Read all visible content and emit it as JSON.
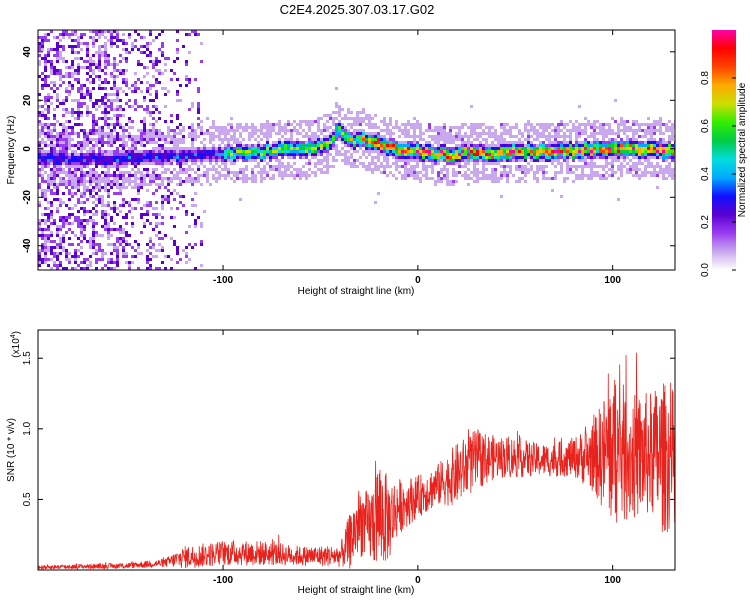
{
  "figure_title": "C2E4.2025.307.03.17.G02",
  "chart_data": [
    {
      "type": "heatmap",
      "title": "C2E4.2025.307.03.17.G02",
      "xlabel": "Height of straight line (km)",
      "ylabel": "Frequency (Hz)",
      "xlim": [
        -195,
        132
      ],
      "ylim": [
        -50,
        49
      ],
      "xticks": [
        -100,
        0,
        100
      ],
      "xtick_labels": [
        "-100",
        "0",
        "100"
      ],
      "yticks": [
        -40,
        -20,
        0,
        20,
        40
      ],
      "ytick_labels": [
        "-40",
        "-20",
        "0",
        "20",
        "40"
      ],
      "ridge": {
        "x": [
          -195,
          -150,
          -120,
          -100,
          -80,
          -60,
          -45,
          -40,
          -35,
          -30,
          -20,
          -10,
          0,
          10,
          20,
          30,
          40,
          50,
          60,
          70,
          80,
          90,
          100,
          110,
          120,
          132
        ],
        "frequency_hz": [
          -4,
          -4,
          -3,
          -2,
          -1,
          0,
          2,
          8,
          3,
          4,
          2,
          0,
          -1,
          -2,
          -2,
          -2,
          -2,
          -1,
          -1,
          -1,
          -1,
          0,
          0,
          0,
          0,
          -1
        ]
      },
      "noise_region_x": [
        -195,
        -110
      ],
      "colorbar": {
        "label": "Normalized spectral amplitude",
        "range": [
          0,
          1
        ],
        "ticks": [
          0,
          0.2,
          0.4,
          0.6,
          0.8
        ],
        "tick_labels": [
          "0.0",
          "0.2",
          "0.4",
          "0.6",
          "0.8"
        ],
        "colors": [
          "#ffffff",
          "#c9a8ee",
          "#9a3cf0",
          "#5a00d0",
          "#1010ff",
          "#00aaff",
          "#00dddd",
          "#00cc44",
          "#33ee00",
          "#ccdd00",
          "#ffaa00",
          "#ff4400",
          "#ff0000",
          "#ff00aa"
        ]
      }
    },
    {
      "type": "line",
      "xlabel": "Height of straight line (km)",
      "ylabel": "SNR (10 * v/v)",
      "y_scale_label": "(x10",
      "y_scale_exponent": "4",
      "y_scale_suffix": ")",
      "xlim": [
        -195,
        132
      ],
      "ylim": [
        0,
        1.7
      ],
      "xticks": [
        -100,
        0,
        100
      ],
      "xtick_labels": [
        "-100",
        "0",
        "100"
      ],
      "yticks": [
        0.5,
        1.0,
        1.5
      ],
      "ytick_labels": [
        "0.5",
        "1.0",
        "1.5"
      ],
      "color": "#e8231d",
      "envelope": {
        "x": [
          -195,
          -150,
          -130,
          -120,
          -100,
          -80,
          -60,
          -40,
          -35,
          -30,
          -25,
          -20,
          -15,
          -10,
          0,
          10,
          20,
          30,
          40,
          50,
          60,
          70,
          80,
          90,
          95,
          100,
          110,
          120,
          125,
          132
        ],
        "mean": [
          0.02,
          0.03,
          0.05,
          0.09,
          0.12,
          0.12,
          0.1,
          0.1,
          0.2,
          0.35,
          0.3,
          0.4,
          0.35,
          0.45,
          0.52,
          0.6,
          0.68,
          0.78,
          0.8,
          0.8,
          0.78,
          0.78,
          0.8,
          0.8,
          0.82,
          0.85,
          0.8,
          0.82,
          0.8,
          0.78
        ],
        "amp": [
          0.015,
          0.02,
          0.03,
          0.08,
          0.09,
          0.09,
          0.07,
          0.08,
          0.2,
          0.25,
          0.25,
          0.4,
          0.3,
          0.2,
          0.15,
          0.15,
          0.22,
          0.22,
          0.15,
          0.15,
          0.12,
          0.12,
          0.14,
          0.25,
          0.4,
          0.55,
          0.45,
          0.45,
          0.55,
          0.5
        ]
      }
    }
  ]
}
